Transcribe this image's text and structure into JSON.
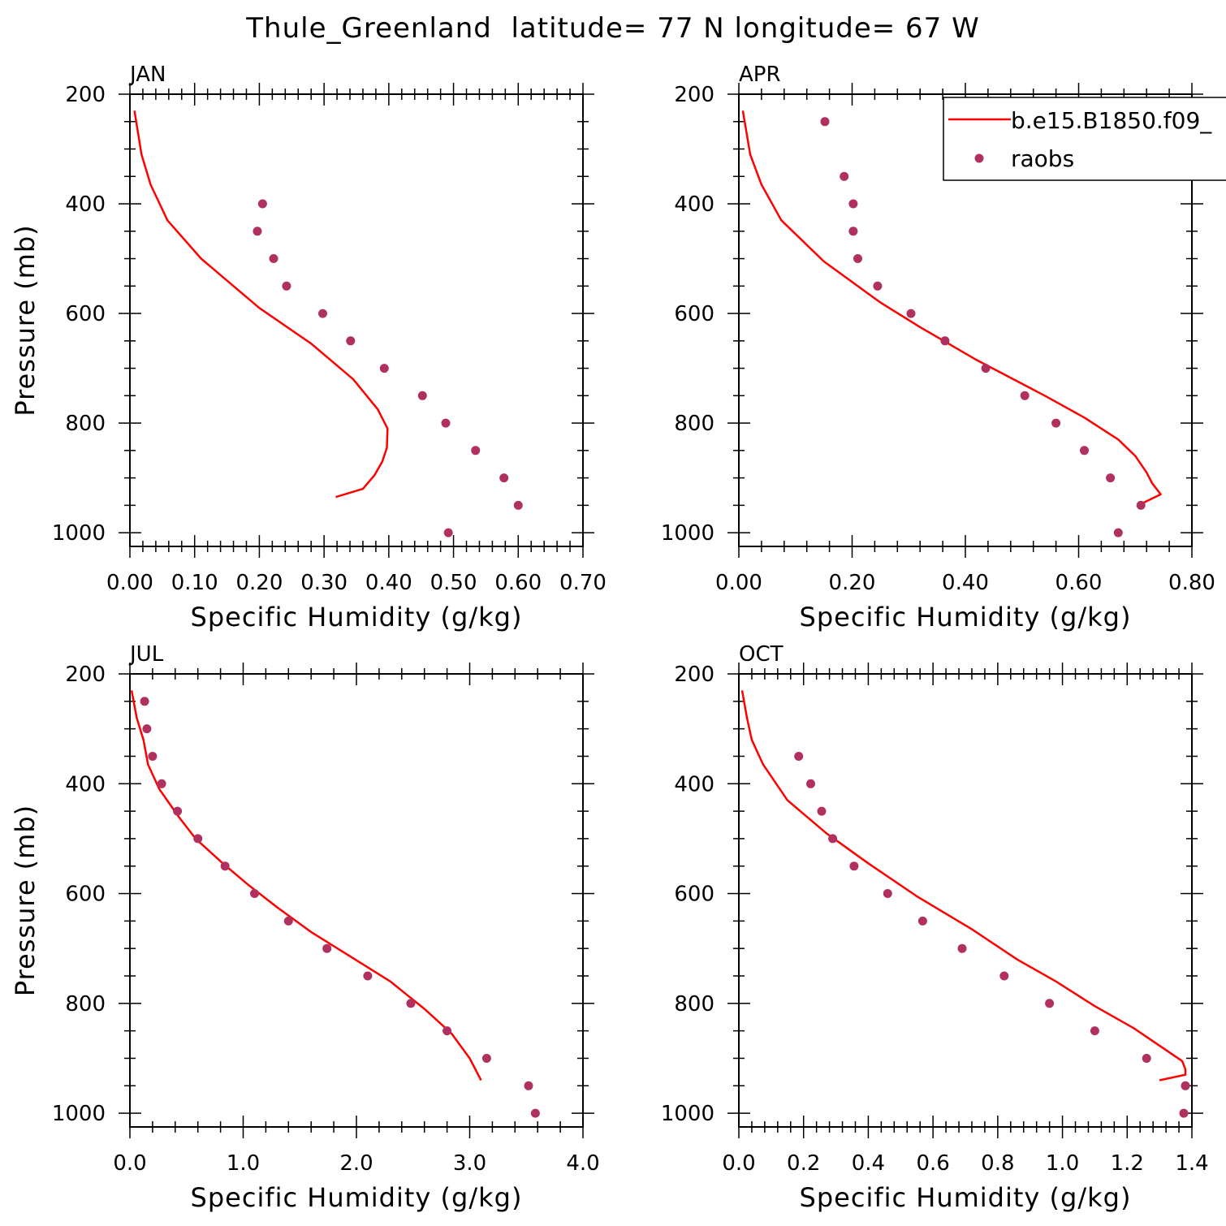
{
  "figure_title": "Thule_Greenland  latitude= 77 N longitude= 67 W",
  "legend": {
    "model_label": "b.e15.B1850.f09_",
    "obs_label": "raobs",
    "placement": "top-right of APR panel"
  },
  "colors": {
    "model": "#ff0000",
    "obs": "#b03060",
    "axis": "#000000"
  },
  "chart_data": [
    {
      "type": "line",
      "panel": "JAN",
      "xlabel": "Specific Humidity (g/kg)",
      "ylabel": "Pressure (mb)",
      "xlim": [
        0,
        0.7
      ],
      "ylim": [
        1025,
        200
      ],
      "y_inverted": true,
      "xticks": [
        "0.00",
        "0.10",
        "0.20",
        "0.30",
        "0.40",
        "0.50",
        "0.60",
        "0.70"
      ],
      "xtick_values": [
        0,
        0.1,
        0.2,
        0.3,
        0.4,
        0.5,
        0.6,
        0.7
      ],
      "yticks": [
        200,
        400,
        600,
        800,
        1000
      ],
      "series": [
        {
          "name": "b.e15.B1850.f09_",
          "kind": "line",
          "points": [
            [
              0.007,
              230
            ],
            [
              0.018,
              310
            ],
            [
              0.032,
              365
            ],
            [
              0.058,
              430
            ],
            [
              0.11,
              500
            ],
            [
              0.2,
              590
            ],
            [
              0.28,
              655
            ],
            [
              0.345,
              720
            ],
            [
              0.383,
              775
            ],
            [
              0.398,
              810
            ],
            [
              0.397,
              845
            ],
            [
              0.39,
              870
            ],
            [
              0.378,
              895
            ],
            [
              0.36,
              920
            ],
            [
              0.318,
              935
            ]
          ]
        },
        {
          "name": "raobs",
          "kind": "points",
          "points": [
            [
              0.205,
              400
            ],
            [
              0.197,
              450
            ],
            [
              0.222,
              500
            ],
            [
              0.242,
              550
            ],
            [
              0.298,
              600
            ],
            [
              0.341,
              650
            ],
            [
              0.393,
              700
            ],
            [
              0.452,
              750
            ],
            [
              0.488,
              800
            ],
            [
              0.534,
              850
            ],
            [
              0.578,
              900
            ],
            [
              0.6,
              950
            ],
            [
              0.492,
              1000
            ]
          ]
        }
      ]
    },
    {
      "type": "line",
      "panel": "APR",
      "xlabel": "Specific Humidity (g/kg)",
      "ylabel": "",
      "xlim": [
        0,
        0.8
      ],
      "ylim": [
        1025,
        200
      ],
      "y_inverted": true,
      "xticks": [
        "0.00",
        "0.20",
        "0.40",
        "0.60",
        "0.80"
      ],
      "xtick_values": [
        0,
        0.2,
        0.4,
        0.6,
        0.8
      ],
      "yticks": [
        200,
        400,
        600,
        800,
        1000
      ],
      "series": [
        {
          "name": "b.e15.B1850.f09_",
          "kind": "line",
          "points": [
            [
              0.007,
              230
            ],
            [
              0.02,
              310
            ],
            [
              0.04,
              365
            ],
            [
              0.075,
              430
            ],
            [
              0.15,
              505
            ],
            [
              0.25,
              580
            ],
            [
              0.32,
              625
            ],
            [
              0.42,
              685
            ],
            [
              0.54,
              750
            ],
            [
              0.61,
              790
            ],
            [
              0.67,
              830
            ],
            [
              0.7,
              860
            ],
            [
              0.72,
              890
            ],
            [
              0.73,
              910
            ],
            [
              0.745,
              930
            ],
            [
              0.715,
              945
            ]
          ]
        },
        {
          "name": "raobs",
          "kind": "points",
          "points": [
            [
              0.152,
              250
            ],
            [
              0.186,
              350
            ],
            [
              0.202,
              400
            ],
            [
              0.202,
              450
            ],
            [
              0.21,
              500
            ],
            [
              0.245,
              550
            ],
            [
              0.304,
              600
            ],
            [
              0.364,
              650
            ],
            [
              0.436,
              700
            ],
            [
              0.505,
              750
            ],
            [
              0.56,
              800
            ],
            [
              0.61,
              850
            ],
            [
              0.656,
              900
            ],
            [
              0.71,
              950
            ],
            [
              0.67,
              1000
            ]
          ]
        }
      ]
    },
    {
      "type": "line",
      "panel": "JUL",
      "xlabel": "Specific Humidity (g/kg)",
      "ylabel": "Pressure (mb)",
      "xlim": [
        0,
        4.0
      ],
      "ylim": [
        1025,
        200
      ],
      "y_inverted": true,
      "xticks": [
        "0.0",
        "1.0",
        "2.0",
        "3.0",
        "4.0"
      ],
      "xtick_values": [
        0,
        1,
        2,
        3,
        4
      ],
      "yticks": [
        200,
        400,
        600,
        800,
        1000
      ],
      "series": [
        {
          "name": "b.e15.B1850.f09_",
          "kind": "line",
          "points": [
            [
              0.015,
              230
            ],
            [
              0.06,
              280
            ],
            [
              0.12,
              320
            ],
            [
              0.16,
              365
            ],
            [
              0.26,
              410
            ],
            [
              0.43,
              460
            ],
            [
              0.58,
              500
            ],
            [
              0.82,
              545
            ],
            [
              1.05,
              585
            ],
            [
              1.3,
              625
            ],
            [
              1.6,
              670
            ],
            [
              1.95,
              715
            ],
            [
              2.3,
              760
            ],
            [
              2.6,
              810
            ],
            [
              2.84,
              855
            ],
            [
              3.0,
              900
            ],
            [
              3.05,
              920
            ],
            [
              3.1,
              940
            ]
          ]
        },
        {
          "name": "raobs",
          "kind": "points",
          "points": [
            [
              0.13,
              250
            ],
            [
              0.15,
              300
            ],
            [
              0.2,
              350
            ],
            [
              0.28,
              400
            ],
            [
              0.42,
              450
            ],
            [
              0.6,
              500
            ],
            [
              0.84,
              550
            ],
            [
              1.1,
              600
            ],
            [
              1.4,
              650
            ],
            [
              1.74,
              700
            ],
            [
              2.1,
              750
            ],
            [
              2.48,
              800
            ],
            [
              2.8,
              850
            ],
            [
              3.15,
              900
            ],
            [
              3.52,
              950
            ],
            [
              3.58,
              1000
            ]
          ]
        }
      ]
    },
    {
      "type": "line",
      "panel": "OCT",
      "xlabel": "Specific Humidity (g/kg)",
      "ylabel": "",
      "xlim": [
        0,
        1.4
      ],
      "ylim": [
        1025,
        200
      ],
      "y_inverted": true,
      "xticks": [
        "0.0",
        "0.2",
        "0.4",
        "0.6",
        "0.8",
        "1.0",
        "1.2",
        "1.4"
      ],
      "xtick_values": [
        0,
        0.2,
        0.4,
        0.6,
        0.8,
        1.0,
        1.2,
        1.4
      ],
      "yticks": [
        200,
        400,
        600,
        800,
        1000
      ],
      "series": [
        {
          "name": "b.e15.B1850.f09_",
          "kind": "line",
          "points": [
            [
              0.01,
              230
            ],
            [
              0.025,
              280
            ],
            [
              0.04,
              320
            ],
            [
              0.075,
              365
            ],
            [
              0.15,
              430
            ],
            [
              0.27,
              490
            ],
            [
              0.4,
              545
            ],
            [
              0.55,
              605
            ],
            [
              0.72,
              665
            ],
            [
              0.86,
              720
            ],
            [
              0.98,
              760
            ],
            [
              1.1,
              805
            ],
            [
              1.22,
              845
            ],
            [
              1.32,
              885
            ],
            [
              1.37,
              905
            ],
            [
              1.38,
              920
            ],
            [
              1.38,
              930
            ],
            [
              1.3,
              940
            ]
          ]
        },
        {
          "name": "raobs",
          "kind": "points",
          "points": [
            [
              0.185,
              350
            ],
            [
              0.222,
              400
            ],
            [
              0.256,
              450
            ],
            [
              0.29,
              500
            ],
            [
              0.356,
              550
            ],
            [
              0.46,
              600
            ],
            [
              0.568,
              650
            ],
            [
              0.69,
              700
            ],
            [
              0.82,
              750
            ],
            [
              0.96,
              800
            ],
            [
              1.1,
              850
            ],
            [
              1.26,
              900
            ],
            [
              1.38,
              950
            ],
            [
              1.375,
              1000
            ]
          ]
        }
      ]
    }
  ]
}
